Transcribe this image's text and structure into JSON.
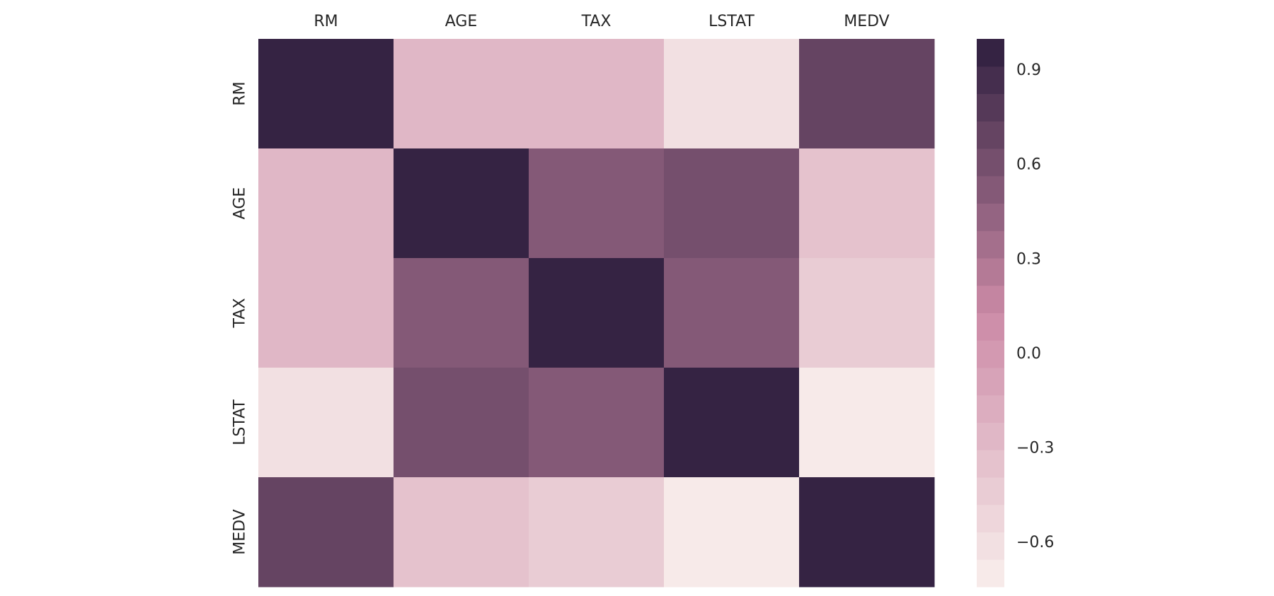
{
  "chart_data": {
    "type": "heatmap",
    "title": "",
    "xlabel": "",
    "ylabel": "",
    "x_categories": [
      "RM",
      "AGE",
      "TAX",
      "LSTAT",
      "MEDV"
    ],
    "y_categories": [
      "RM",
      "AGE",
      "TAX",
      "LSTAT",
      "MEDV"
    ],
    "x_tick_position": "top",
    "values": [
      [
        1.0,
        -0.24,
        -0.29,
        -0.61,
        0.7
      ],
      [
        -0.24,
        1.0,
        0.51,
        0.6,
        -0.38
      ],
      [
        -0.29,
        0.51,
        1.0,
        0.54,
        -0.47
      ],
      [
        -0.61,
        0.6,
        0.54,
        1.0,
        -0.74
      ],
      [
        0.7,
        -0.38,
        -0.47,
        -0.74,
        1.0
      ]
    ],
    "colorbar": {
      "vmin": -0.74,
      "vmax": 1.0,
      "levels": 20,
      "ticks": [
        0.9,
        0.6,
        0.3,
        0.0,
        -0.3,
        -0.6
      ],
      "tick_labels": [
        "0.9",
        "0.6",
        "0.3",
        "0.0",
        "−0.3",
        "−0.6"
      ],
      "placement": "right"
    },
    "colormap": {
      "name": "cubehelix-light-purple",
      "low": "#f9efec",
      "mid": "#cc8aa6",
      "high": "#2d1e3e"
    },
    "grid": false
  }
}
